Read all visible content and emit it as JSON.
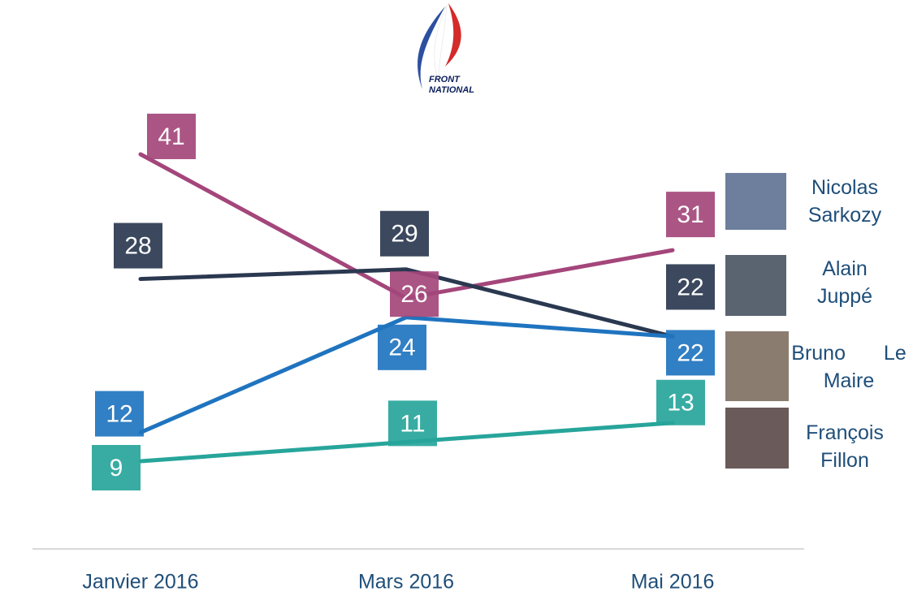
{
  "chart_data": {
    "type": "line",
    "logo_text": [
      "FRONT",
      "NATIONAL"
    ],
    "categories": [
      "Janvier 2016",
      "Mars 2016",
      "Mai 2016"
    ],
    "series": [
      {
        "name": "Nicolas Sarkozy",
        "color": "#a4467b",
        "values": [
          41,
          26,
          31
        ]
      },
      {
        "name": "Alain Juppé",
        "color": "#2a3850",
        "values": [
          28,
          29,
          22
        ]
      },
      {
        "name": "Bruno Le Maire",
        "color": "#1f74bf",
        "values": [
          12,
          24,
          22
        ]
      },
      {
        "name": "François Fillon",
        "color": "#27a59b",
        "values": [
          9,
          11,
          13
        ]
      }
    ]
  }
}
